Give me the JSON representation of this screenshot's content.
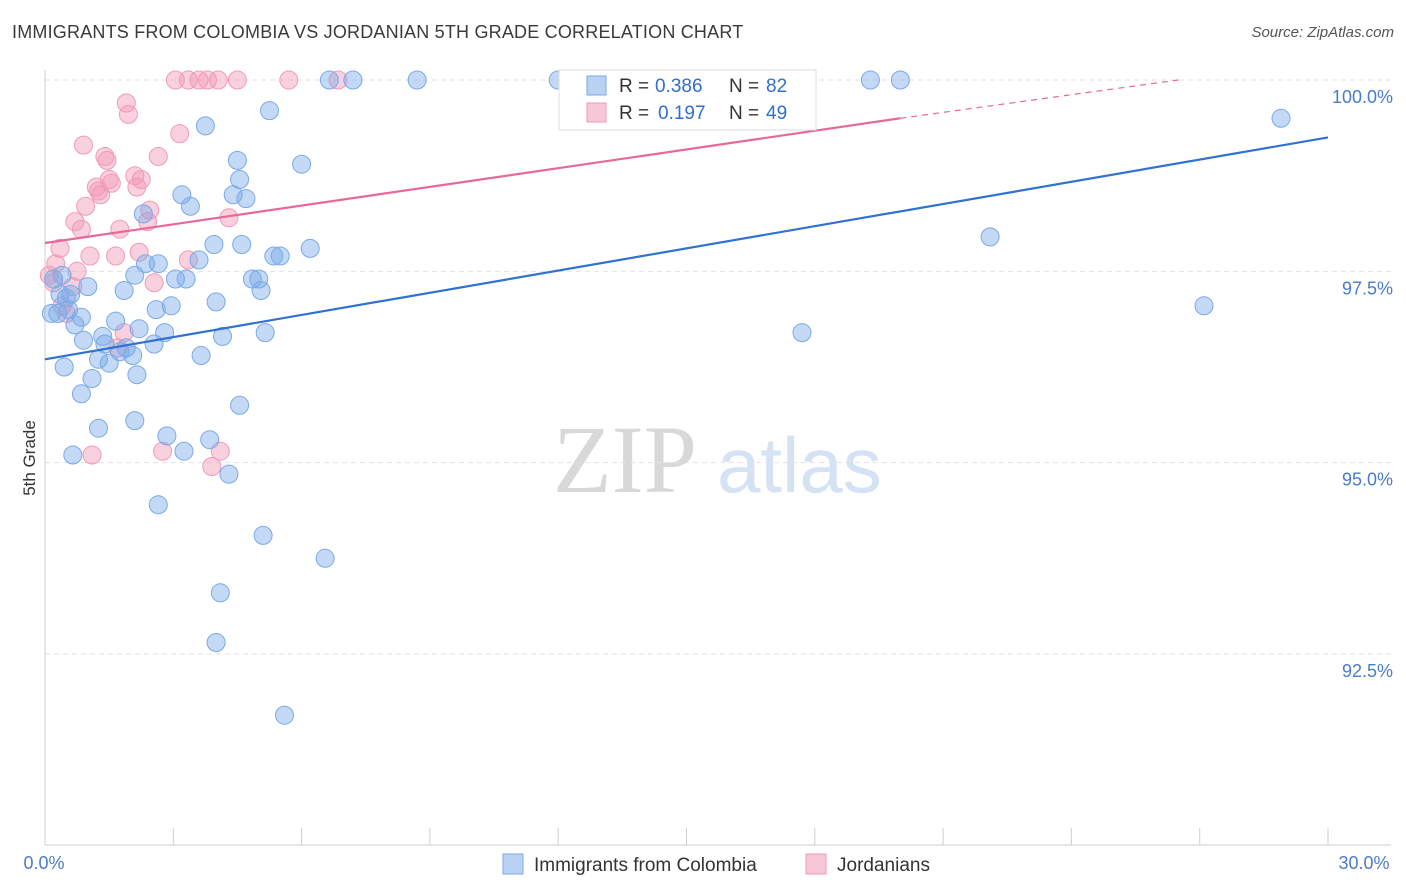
{
  "title": "IMMIGRANTS FROM COLOMBIA VS JORDANIAN 5TH GRADE CORRELATION CHART",
  "source": "Source: ZipAtlas.com",
  "watermark": {
    "zip": "ZIP",
    "atlas": "atlas"
  },
  "colors": {
    "blue": "#7aaae8",
    "blue_line": "#2f72d0",
    "pink": "#f29ab6",
    "pink_line": "#e8689a",
    "axis_text": "#4a7cc7"
  },
  "legend": {
    "rows": [
      {
        "r_label": "R = ",
        "r_value": "0.386",
        "n_label": "N = ",
        "n_value": "82"
      },
      {
        "r_label": "R = ",
        "r_value": "0.197",
        "n_label": "N = ",
        "n_value": "49"
      }
    ]
  },
  "chart_data": {
    "type": "scatter",
    "title": "IMMIGRANTS FROM COLOMBIA VS JORDANIAN 5TH GRADE CORRELATION CHART",
    "xlabel": "",
    "ylabel": "5th Grade",
    "xlim": [
      0,
      30
    ],
    "ylim": [
      90.0,
      100.4
    ],
    "x_tick_labels": [
      "0.0%",
      "30.0%"
    ],
    "y_ticks": [
      92.5,
      95.0,
      97.5,
      100.0
    ],
    "y_tick_labels": [
      "92.5%",
      "95.0%",
      "97.5%",
      "100.0%"
    ],
    "series": [
      {
        "name": "Immigrants from Colombia",
        "R": 0.386,
        "N": 82,
        "trend": {
          "x0": 0,
          "y0": 96.35,
          "x1": 30,
          "y1": 99.25
        },
        "points": [
          [
            0.2,
            97.4
          ],
          [
            0.35,
            97.2
          ],
          [
            0.5,
            97.15
          ],
          [
            0.55,
            97.0
          ],
          [
            0.7,
            96.8
          ],
          [
            0.85,
            96.9
          ],
          [
            0.9,
            96.6
          ],
          [
            0.45,
            96.25
          ],
          [
            1.0,
            97.3
          ],
          [
            1.1,
            96.1
          ],
          [
            1.25,
            96.35
          ],
          [
            1.4,
            96.55
          ],
          [
            1.35,
            96.65
          ],
          [
            1.5,
            96.3
          ],
          [
            1.65,
            96.85
          ],
          [
            1.75,
            96.45
          ],
          [
            1.9,
            96.5
          ],
          [
            1.85,
            97.25
          ],
          [
            2.1,
            97.45
          ],
          [
            2.05,
            96.4
          ],
          [
            2.2,
            96.75
          ],
          [
            2.35,
            97.6
          ],
          [
            2.3,
            98.25
          ],
          [
            2.6,
            97.0
          ],
          [
            2.65,
            97.6
          ],
          [
            2.55,
            96.55
          ],
          [
            2.8,
            96.7
          ],
          [
            2.95,
            97.05
          ],
          [
            3.05,
            97.4
          ],
          [
            3.2,
            98.5
          ],
          [
            3.4,
            98.35
          ],
          [
            3.3,
            97.4
          ],
          [
            3.65,
            96.4
          ],
          [
            3.6,
            97.65
          ],
          [
            3.95,
            97.85
          ],
          [
            4.0,
            97.1
          ],
          [
            4.15,
            96.65
          ],
          [
            4.4,
            98.5
          ],
          [
            4.5,
            98.95
          ],
          [
            4.55,
            98.7
          ],
          [
            4.7,
            98.45
          ],
          [
            4.6,
            97.85
          ],
          [
            4.85,
            97.4
          ],
          [
            5.0,
            97.4
          ],
          [
            5.05,
            97.25
          ],
          [
            5.15,
            96.7
          ],
          [
            5.25,
            99.6
          ],
          [
            5.35,
            97.7
          ],
          [
            5.5,
            97.7
          ],
          [
            6.0,
            98.9
          ],
          [
            6.2,
            97.8
          ],
          [
            6.65,
            100.0
          ],
          [
            7.2,
            100.0
          ],
          [
            5.1,
            94.05
          ],
          [
            5.6,
            91.7
          ],
          [
            4.0,
            92.65
          ],
          [
            4.1,
            93.3
          ],
          [
            4.55,
            95.75
          ],
          [
            4.3,
            94.85
          ],
          [
            3.85,
            95.3
          ],
          [
            3.75,
            99.4
          ],
          [
            2.65,
            94.45
          ],
          [
            2.1,
            95.55
          ],
          [
            1.25,
            95.45
          ],
          [
            0.85,
            95.9
          ],
          [
            0.65,
            95.1
          ],
          [
            0.3,
            96.95
          ],
          [
            0.4,
            97.45
          ],
          [
            0.6,
            97.2
          ],
          [
            0.15,
            96.95
          ],
          [
            2.15,
            96.15
          ],
          [
            3.25,
            95.15
          ],
          [
            2.85,
            95.35
          ],
          [
            6.55,
            93.75
          ],
          [
            8.7,
            100.0
          ],
          [
            12.0,
            100.0
          ],
          [
            19.3,
            100.0
          ],
          [
            20.0,
            100.0
          ],
          [
            27.1,
            97.05
          ],
          [
            28.9,
            99.5
          ],
          [
            22.1,
            97.95
          ],
          [
            17.7,
            96.7
          ]
        ]
      },
      {
        "name": "Jordanians",
        "R": 0.197,
        "N": 49,
        "trend": {
          "x0": 0,
          "y0": 97.87,
          "x1": 20,
          "y1": 99.5,
          "dash_x1": 26.5,
          "dash_y1": 100.0
        },
        "points": [
          [
            0.1,
            97.45
          ],
          [
            0.25,
            97.6
          ],
          [
            0.35,
            97.8
          ],
          [
            0.5,
            96.95
          ],
          [
            0.65,
            97.3
          ],
          [
            0.75,
            97.5
          ],
          [
            0.85,
            98.05
          ],
          [
            0.95,
            98.35
          ],
          [
            0.7,
            98.15
          ],
          [
            1.05,
            97.7
          ],
          [
            1.2,
            98.6
          ],
          [
            1.25,
            98.55
          ],
          [
            1.3,
            98.5
          ],
          [
            1.4,
            99.0
          ],
          [
            1.5,
            98.7
          ],
          [
            1.55,
            98.65
          ],
          [
            1.75,
            98.05
          ],
          [
            1.65,
            97.7
          ],
          [
            1.9,
            99.7
          ],
          [
            1.95,
            99.55
          ],
          [
            2.15,
            98.6
          ],
          [
            2.1,
            98.75
          ],
          [
            2.25,
            98.7
          ],
          [
            2.2,
            97.75
          ],
          [
            2.4,
            98.15
          ],
          [
            2.45,
            98.3
          ],
          [
            2.55,
            97.35
          ],
          [
            2.65,
            99.0
          ],
          [
            3.15,
            99.3
          ],
          [
            3.05,
            100.0
          ],
          [
            3.35,
            97.65
          ],
          [
            3.8,
            100.0
          ],
          [
            4.05,
            100.0
          ],
          [
            4.3,
            98.2
          ],
          [
            4.1,
            95.15
          ],
          [
            3.9,
            94.95
          ],
          [
            2.75,
            95.15
          ],
          [
            1.7,
            96.5
          ],
          [
            1.85,
            96.7
          ],
          [
            1.1,
            95.1
          ],
          [
            1.45,
            98.95
          ],
          [
            0.9,
            99.15
          ],
          [
            5.7,
            100.0
          ],
          [
            6.85,
            100.0
          ],
          [
            0.4,
            97.05
          ],
          [
            0.2,
            97.35
          ],
          [
            4.5,
            100.0
          ],
          [
            3.35,
            100.0
          ],
          [
            3.6,
            100.0
          ]
        ]
      }
    ]
  },
  "bottom_legend": [
    "Immigrants from Colombia",
    "Jordanians"
  ]
}
